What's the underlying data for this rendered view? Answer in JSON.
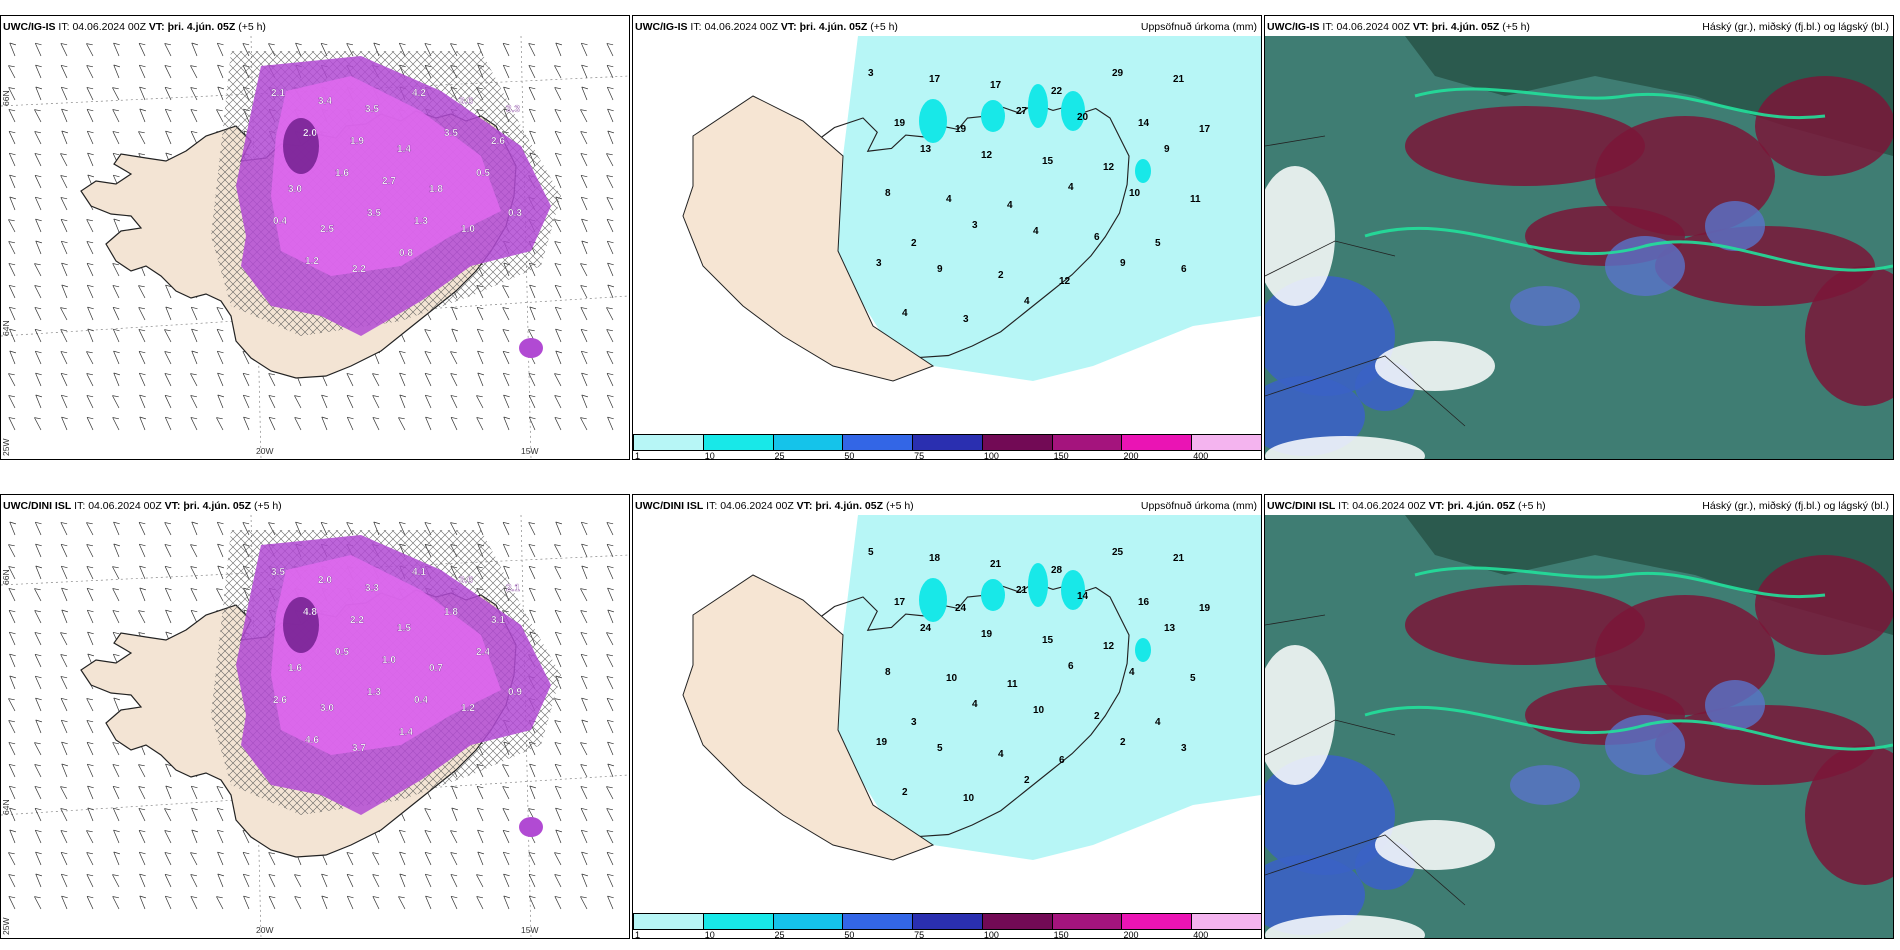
{
  "row1": {
    "model": "UWC/IG-IS",
    "run_prefix": "IT:",
    "run_time": "04.06.2024 00Z",
    "valid_prefix": "VT:",
    "valid_time": "þri. 4.jún. 05Z",
    "lead": "(+5 h)"
  },
  "row2": {
    "model": "UWC/DINI ISL",
    "run_prefix": "IT:",
    "run_time": "04.06.2024 00Z",
    "valid_prefix": "VT:",
    "valid_time": "þri. 4.jún. 05Z",
    "lead": "(+5 h)"
  },
  "precip_title": "Uppsöfnuð úrkoma (mm)",
  "cloud_title": "Háský (gr.), miðský (fj.bl.) og lágský (bl.)",
  "axis_labels": {
    "lat66": "66N",
    "lat64": "64N",
    "lon25": "25W",
    "lon20": "20W",
    "lon15": "15W"
  },
  "precip_legend": {
    "ticks": [
      "1",
      "10",
      "25",
      "50",
      "75",
      "100",
      "150",
      "200",
      "400"
    ],
    "colors": [
      "#b7f6f6",
      "#18e8e8",
      "#15c3ea",
      "#3366e6",
      "#2a2fb0",
      "#720a55",
      "#a4147d",
      "#ea14b4",
      "#f4b4ef"
    ]
  },
  "cloud_colors": {
    "high_cloud": "#7a1638",
    "mid_cloud": "#3b62c4",
    "low_cloud": "#2f6e66",
    "edge": "#22e09b"
  },
  "wind_values_row1": [
    "2.1",
    "3.4",
    "3.5",
    "4.2",
    "3.6",
    "3.3",
    "2.0",
    "1.9",
    "1.4",
    "3.5",
    "2.6",
    "3.0",
    "1.6",
    "2.7",
    "1.8",
    "0.5",
    "0.4",
    "2.5",
    "3.5",
    "1.3",
    "1.0",
    "0.3",
    "1.2",
    "2.2",
    "0.8"
  ],
  "wind_values_row2": [
    "3.5",
    "2.0",
    "3.3",
    "4.1",
    "3.6",
    "2.1",
    "4.8",
    "2.2",
    "1.5",
    "1.8",
    "3.1",
    "1.6",
    "0.5",
    "1.0",
    "0.7",
    "2.4",
    "2.6",
    "3.0",
    "1.3",
    "0.4",
    "1.2",
    "0.9",
    "4.6",
    "3.7",
    "1.4"
  ],
  "precip_values_row1": [
    "3",
    "17",
    "17",
    "22",
    "29",
    "21",
    "19",
    "19",
    "27",
    "20",
    "14",
    "17",
    "13",
    "12",
    "15",
    "12",
    "9",
    "8",
    "4",
    "4",
    "4",
    "10",
    "11",
    "2",
    "3",
    "4",
    "6",
    "5",
    "3",
    "9",
    "2",
    "12",
    "9",
    "6",
    "4",
    "3",
    "4"
  ],
  "precip_values_row2": [
    "5",
    "18",
    "21",
    "28",
    "25",
    "21",
    "17",
    "24",
    "21",
    "14",
    "16",
    "19",
    "24",
    "19",
    "15",
    "12",
    "13",
    "8",
    "10",
    "11",
    "6",
    "4",
    "5",
    "3",
    "4",
    "10",
    "2",
    "4",
    "19",
    "5",
    "4",
    "6",
    "2",
    "3",
    "2",
    "10",
    "2"
  ]
}
